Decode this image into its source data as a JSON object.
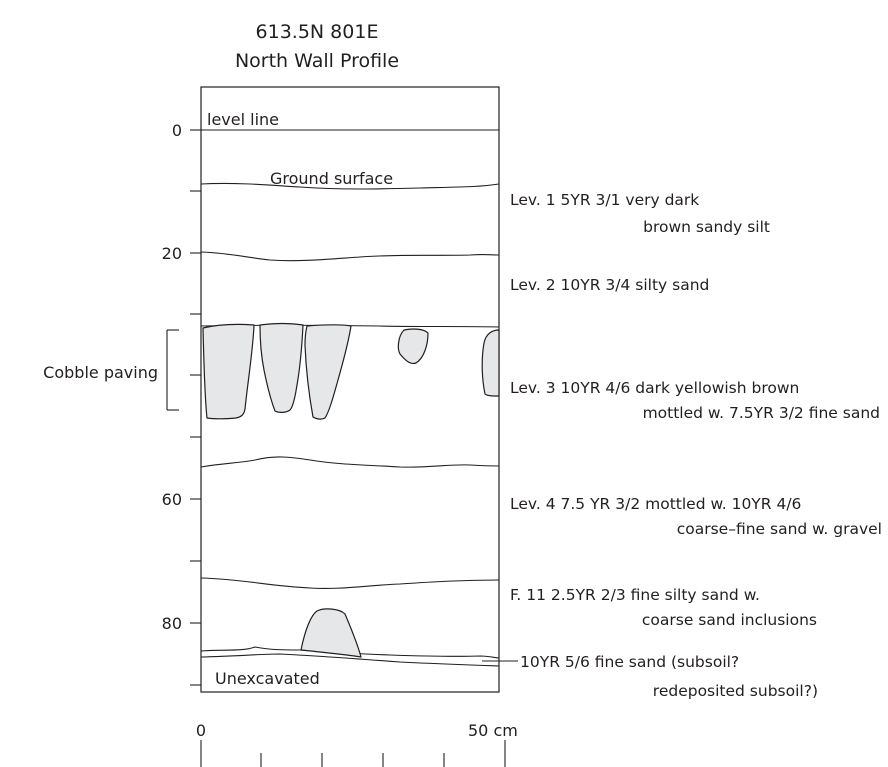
{
  "title": {
    "line1": "613.5N 801E",
    "line2": "North Wall Profile"
  },
  "depth_axis": {
    "ticks": [
      0,
      20,
      40,
      60,
      80
    ],
    "labels": [
      "0",
      "20",
      "60",
      "80"
    ]
  },
  "profile_labels": {
    "level_line": "level line",
    "ground_surface": "Ground surface",
    "unexcavated": "Unexcavated",
    "cobble_paving": "Cobble paving"
  },
  "layers": [
    {
      "lines": [
        "Lev. 1  5YR 3/1 very dark",
        "brown sandy silt"
      ]
    },
    {
      "lines": [
        "Lev. 2  10YR 3/4 silty sand"
      ]
    },
    {
      "lines": [
        "Lev. 3 10YR 4/6 dark yellowish brown",
        "mottled w. 7.5YR 3/2 fine sand"
      ]
    },
    {
      "lines": [
        "Lev. 4  7.5 YR 3/2 mottled w. 10YR 4/6",
        "coarse–fine sand w. gravel"
      ]
    },
    {
      "lines": [
        "F. 11  2.5YR 2/3 fine silty sand w.",
        "coarse sand inclusions"
      ]
    },
    {
      "lines": [
        "10YR 5/6 fine sand  (subsoil?",
        "redeposited subsoil?)"
      ]
    }
  ],
  "scale_bar": {
    "start_label": "0",
    "end_label": "50 cm"
  }
}
